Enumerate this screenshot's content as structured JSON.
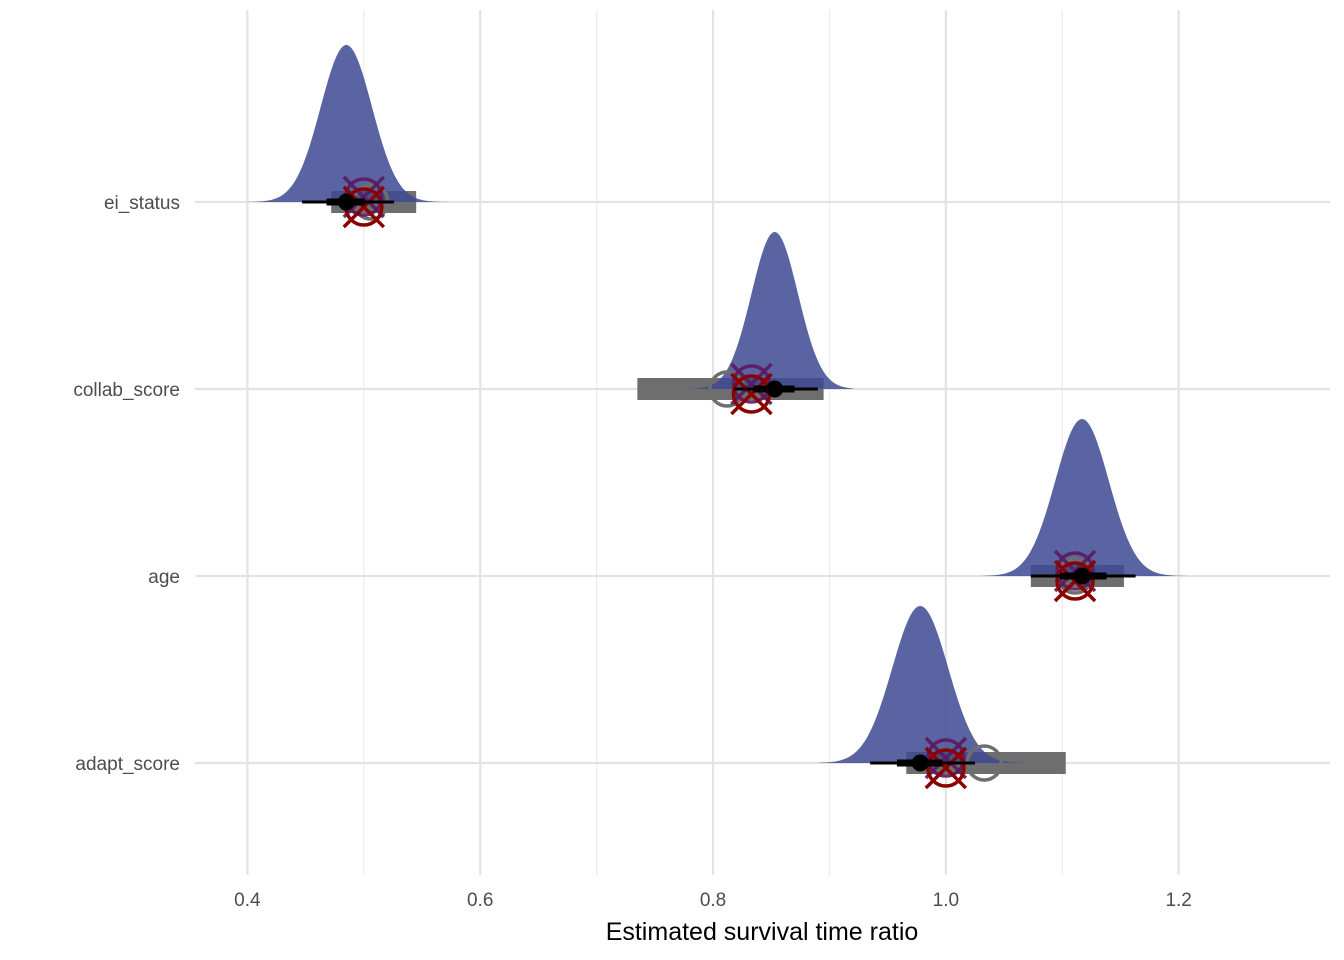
{
  "chart_data": {
    "type": "halfeye-interval",
    "xlabel": "Estimated survival time ratio",
    "xlim": [
      0.355,
      1.33
    ],
    "x_ticks": [
      0.4,
      0.6,
      0.8,
      1.0,
      1.2
    ],
    "x_tick_labels": [
      "0.4",
      "0.6",
      "0.8",
      "1.0",
      "1.2"
    ],
    "categories": [
      "ei_status",
      "collab_score",
      "age",
      "adapt_score"
    ],
    "grid": true,
    "colors": {
      "density": "#3f4a94",
      "frequentist_ci": "#6e6e6e",
      "frequentist_estimate": "#6e6e6e",
      "true_value": "#8b0000",
      "prior_mean": "#5a1a5e",
      "interval": "#000000"
    },
    "rows": [
      {
        "name": "ei_status",
        "density": {
          "mean": 0.485,
          "sd": 0.022,
          "min": 0.4,
          "max": 0.58
        },
        "interval_95": [
          0.447,
          0.526
        ],
        "interval_66": [
          0.468,
          0.501
        ],
        "median": 0.485,
        "freq_estimate": 0.506,
        "freq_ci": [
          0.472,
          0.545
        ],
        "true_value": 0.5,
        "prior_mean": 0.5
      },
      {
        "name": "collab_score",
        "density": {
          "mean": 0.853,
          "sd": 0.02,
          "min": 0.78,
          "max": 0.92
        },
        "interval_95": [
          0.818,
          0.89
        ],
        "interval_66": [
          0.835,
          0.87
        ],
        "median": 0.853,
        "freq_estimate": 0.812,
        "freq_ci": [
          0.735,
          0.895
        ],
        "true_value": 0.833,
        "prior_mean": 0.833
      },
      {
        "name": "age",
        "density": {
          "mean": 1.117,
          "sd": 0.023,
          "min": 1.03,
          "max": 1.22
        },
        "interval_95": [
          1.073,
          1.163
        ],
        "interval_66": [
          1.098,
          1.138
        ],
        "median": 1.117,
        "freq_estimate": 1.111,
        "freq_ci": [
          1.073,
          1.153
        ],
        "true_value": 1.111,
        "prior_mean": 1.111
      },
      {
        "name": "adapt_score",
        "density": {
          "mean": 0.978,
          "sd": 0.024,
          "min": 0.89,
          "max": 1.08
        },
        "interval_95": [
          0.935,
          1.025
        ],
        "interval_66": [
          0.958,
          0.997
        ],
        "median": 0.978,
        "freq_estimate": 1.033,
        "freq_ci": [
          0.966,
          1.103
        ],
        "true_value": 1.0,
        "prior_mean": 1.0
      }
    ]
  }
}
